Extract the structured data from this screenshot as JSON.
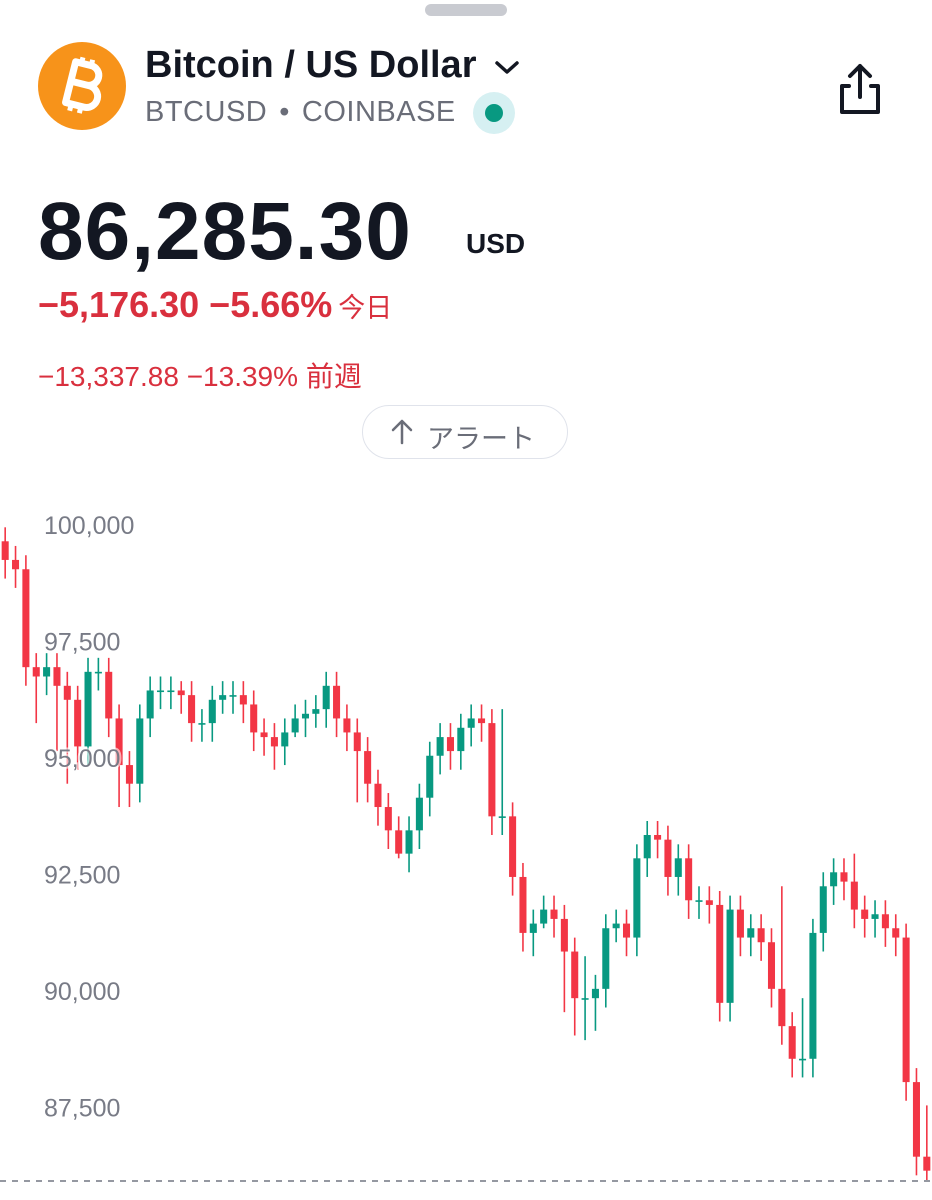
{
  "header": {
    "title": "Bitcoin / US Dollar",
    "symbol": "BTCUSD",
    "exchange": "COINBASE",
    "price": "86,285.30",
    "currency": "USD",
    "change": "−5,176.30",
    "change_percent": "−5.66%",
    "change_period": "今日",
    "week_change": "−13,337.88",
    "week_change_percent": "−13.39%",
    "week_period": "前週",
    "alert_button": "アラート"
  },
  "chart_data": {
    "type": "candlestick",
    "up_color": "#089981",
    "down_color": "#f23645",
    "grid": false,
    "ylim": [
      86000,
      100800
    ],
    "yticks": [
      {
        "value": 100000,
        "label": "100,000"
      },
      {
        "value": 97500,
        "label": "97,500"
      },
      {
        "value": 95000,
        "label": "95,000"
      },
      {
        "value": 92500,
        "label": "92,500"
      },
      {
        "value": 90000,
        "label": "90,000"
      },
      {
        "value": 87500,
        "label": "87,500"
      }
    ],
    "open": [
      99700,
      99300,
      99100,
      97000,
      96800,
      97000,
      96600,
      96300,
      95300,
      96900,
      96900,
      95900,
      94900,
      94500,
      95900,
      96500,
      96500,
      96500,
      96400,
      95800,
      95800,
      96300,
      96400,
      96400,
      96200,
      95600,
      95500,
      95300,
      95600,
      95900,
      96000,
      96100,
      96600,
      95900,
      95600,
      95200,
      94500,
      94000,
      93500,
      93000,
      93500,
      94200,
      95100,
      95500,
      95200,
      95700,
      95900,
      95800,
      93800,
      93800,
      92500,
      91300,
      91500,
      91800,
      91600,
      90900,
      89900,
      89900,
      90100,
      91400,
      91500,
      91200,
      92900,
      93400,
      93300,
      92500,
      92900,
      92000,
      92000,
      91900,
      89800,
      91800,
      91200,
      91400,
      91100,
      90100,
      89300,
      88600,
      88600,
      91300,
      92300,
      92600,
      92400,
      91800,
      91600,
      91700,
      91400,
      91200,
      88100,
      86500
    ],
    "high": [
      100000,
      99600,
      99400,
      97300,
      97300,
      97300,
      96900,
      96600,
      97200,
      97200,
      97200,
      96200,
      95200,
      96200,
      96800,
      96800,
      96800,
      96700,
      96700,
      96100,
      96600,
      96700,
      96700,
      96700,
      96500,
      95900,
      95800,
      95900,
      96200,
      96300,
      96400,
      96900,
      96900,
      96200,
      95900,
      95500,
      94800,
      94300,
      93800,
      93800,
      94500,
      95400,
      95800,
      95800,
      96000,
      96200,
      96200,
      96100,
      96100,
      94100,
      92800,
      91800,
      92100,
      92100,
      91900,
      91200,
      90800,
      90400,
      91700,
      91800,
      91800,
      93200,
      93700,
      93700,
      93600,
      93200,
      93200,
      92300,
      92300,
      92200,
      92100,
      92100,
      91700,
      91700,
      91400,
      92300,
      89600,
      89900,
      91600,
      92600,
      92900,
      92900,
      93000,
      92100,
      92000,
      92000,
      91700,
      91500,
      88400,
      87600
    ],
    "low": [
      98900,
      98700,
      96600,
      95800,
      96400,
      95200,
      94500,
      94800,
      94900,
      96500,
      95500,
      94000,
      94000,
      94100,
      95500,
      96100,
      96100,
      96000,
      95400,
      95400,
      95400,
      96000,
      96000,
      95800,
      95200,
      95100,
      94800,
      94900,
      95500,
      95500,
      95700,
      95700,
      95500,
      95200,
      94100,
      94100,
      93600,
      93100,
      92900,
      92600,
      93100,
      93800,
      94700,
      94800,
      94800,
      95300,
      95400,
      93400,
      93400,
      92100,
      90900,
      90800,
      91400,
      91200,
      89600,
      89100,
      89000,
      89200,
      89700,
      91100,
      90800,
      90800,
      92500,
      92900,
      92100,
      92100,
      91600,
      91600,
      91500,
      89400,
      89400,
      90800,
      90800,
      90700,
      89700,
      88900,
      88200,
      88200,
      88200,
      90900,
      91900,
      92000,
      91400,
      91200,
      91200,
      91000,
      90800,
      87700,
      86100,
      86000
    ],
    "close": [
      99300,
      99100,
      97000,
      96800,
      97000,
      96600,
      96300,
      95300,
      96900,
      96900,
      95900,
      94900,
      94500,
      95900,
      96500,
      96500,
      96500,
      96400,
      95800,
      95800,
      96300,
      96400,
      96400,
      96200,
      95600,
      95500,
      95300,
      95600,
      95900,
      96000,
      96100,
      96600,
      95900,
      95600,
      95200,
      94500,
      94000,
      93500,
      93000,
      93500,
      94200,
      95100,
      95500,
      95200,
      95700,
      95900,
      95800,
      93800,
      93800,
      92500,
      91300,
      91500,
      91800,
      91600,
      90900,
      89900,
      89900,
      90100,
      91400,
      91500,
      91200,
      92900,
      93400,
      93300,
      92500,
      92900,
      92000,
      92000,
      91900,
      89800,
      91800,
      91200,
      91400,
      91100,
      90100,
      89300,
      88600,
      88600,
      91300,
      92300,
      92600,
      92400,
      91800,
      91600,
      91700,
      91400,
      91200,
      88100,
      86500,
      86200
    ]
  }
}
